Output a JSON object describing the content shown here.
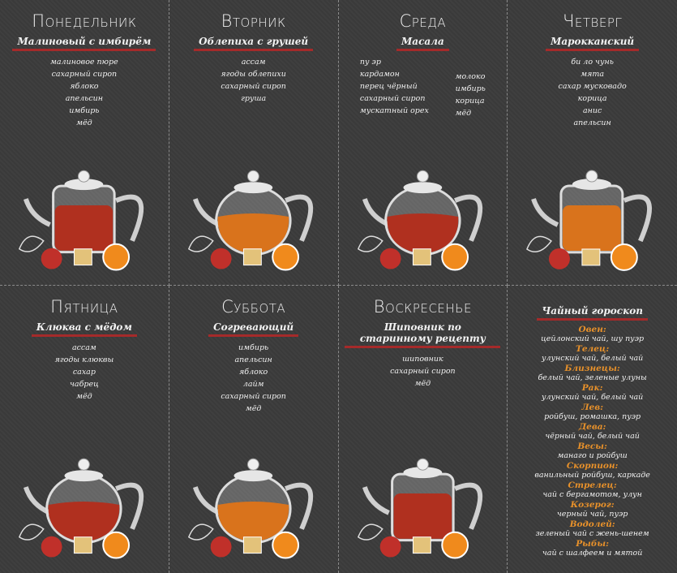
{
  "colors": {
    "background": "#3d3d3d",
    "underline": "#a52a2a",
    "sign": "#e8912a",
    "tea_amber": "#d9731c",
    "tea_red": "#b0301f"
  },
  "days": [
    {
      "day": "Понедельник",
      "tea": "Малиновый с имбирём",
      "ingredients": [
        "малиновое пюре",
        "сахарный сироп",
        "яблоко",
        "апельсин",
        "имбирь",
        "мёд"
      ],
      "extra": []
    },
    {
      "day": "Вторник",
      "tea": "Облепиха с грушей",
      "ingredients": [
        "ассам",
        "ягоды облепихи",
        "сахарный сироп",
        "груша"
      ],
      "extra": []
    },
    {
      "day": "Среда",
      "tea": "Масала",
      "ingredients": [
        "пу эр",
        "кардамон",
        "перец чёрный",
        "сахарный сироп",
        "мускатный орех"
      ],
      "extra": [
        "молоко",
        "имбирь",
        "корица",
        "мёд"
      ]
    },
    {
      "day": "Четверг",
      "tea": "Марокканский",
      "ingredients": [
        "би ло чунь",
        "мята",
        "сахар мусковадо",
        "корица",
        "анис",
        "апельсин"
      ],
      "extra": []
    },
    {
      "day": "Пятница",
      "tea": "Клюква с мёдом",
      "ingredients": [
        "ассам",
        "ягоды клюквы",
        "сахар",
        "чабрец",
        "мёд"
      ],
      "extra": []
    },
    {
      "day": "Суббота",
      "tea": "Согревающий",
      "ingredients": [
        "имбирь",
        "апельсин",
        "яблоко",
        "лайм",
        "сахарный сироп",
        "мёд"
      ],
      "extra": []
    },
    {
      "day": "Воскресенье",
      "tea": "Шиповник по старинному рецепту",
      "ingredients": [
        "шиповник",
        "сахарный сироп",
        "мёд"
      ],
      "extra": []
    }
  ],
  "horoscope": {
    "title": "Чайный гороскоп",
    "signs": [
      {
        "sign": "Овен:",
        "teas": "цейлонский чай, шу пуэр"
      },
      {
        "sign": "Телец:",
        "teas": "улунский чай, белый чай"
      },
      {
        "sign": "Близнецы:",
        "teas": "белый чай, зеленые улуны"
      },
      {
        "sign": "Рак:",
        "teas": "улунский чай, белый чай"
      },
      {
        "sign": "Лев:",
        "teas": "ройбуш, ромашка, пуэр"
      },
      {
        "sign": "Дева:",
        "teas": "чёрный чай, белый чай"
      },
      {
        "sign": "Весы:",
        "teas": "манаго и ройбуш"
      },
      {
        "sign": "Скорпион:",
        "teas": "ванильный ройбуш, каркаде"
      },
      {
        "sign": "Стрелец:",
        "teas": "чай с бергамотом, улун"
      },
      {
        "sign": "Козерог:",
        "teas": "черный чай, пуэр"
      },
      {
        "sign": "Водолей:",
        "teas": "зеленый чай с жень-шенем"
      },
      {
        "sign": "Рыбы:",
        "teas": "чай с шалфеем и мятой"
      }
    ]
  }
}
